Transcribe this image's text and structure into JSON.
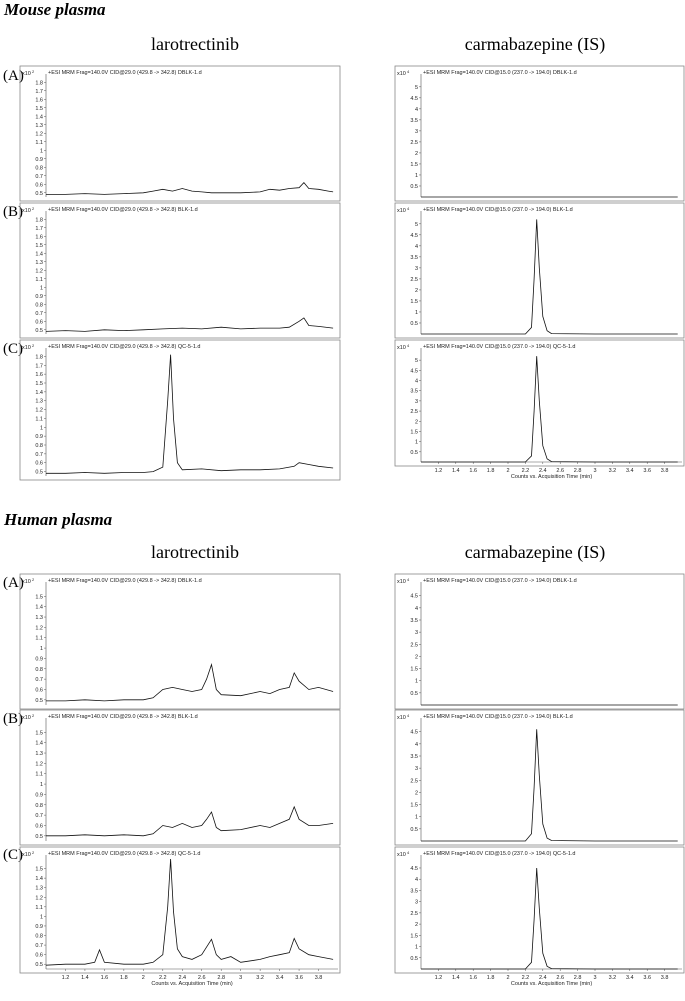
{
  "sections": [
    {
      "title": "Mouse plasma",
      "columns": [
        "larotrectinib",
        "carmabazepine (IS)"
      ],
      "rows": [
        "(A)",
        "(B)",
        "(C)"
      ]
    },
    {
      "title": "Human plasma",
      "columns": [
        "larotrectinib",
        "carmabazepine (IS)"
      ],
      "rows": [
        "(A)",
        "(B)",
        "(C)"
      ]
    }
  ],
  "chart_data": [
    {
      "type": "line",
      "panel": "mouse-larotrectinib-A",
      "header": "+ESI MRM Frag=140.0V CID@29.0 (429.8 -> 342.8) DBLK-1.d",
      "scale_label": "x10 2",
      "yticks": [
        "1.8",
        "1.7",
        "1.6",
        "1.5",
        "1.4",
        "1.3",
        "1.2",
        "1.1",
        "1",
        "0.9",
        "0.8",
        "0.7",
        "0.6",
        "0.5"
      ],
      "ylim": [
        0.45,
        1.85
      ],
      "x": [
        1.0,
        1.2,
        1.4,
        1.6,
        1.8,
        2.0,
        2.1,
        2.2,
        2.3,
        2.4,
        2.5,
        2.6,
        2.7,
        2.8,
        3.0,
        3.2,
        3.3,
        3.4,
        3.5,
        3.6,
        3.65,
        3.7,
        3.8,
        3.9,
        3.95
      ],
      "y": [
        0.48,
        0.48,
        0.49,
        0.48,
        0.49,
        0.5,
        0.52,
        0.54,
        0.52,
        0.55,
        0.52,
        0.51,
        0.5,
        0.5,
        0.5,
        0.51,
        0.54,
        0.53,
        0.55,
        0.56,
        0.62,
        0.55,
        0.54,
        0.52,
        0.51
      ]
    },
    {
      "type": "line",
      "panel": "mouse-carbamazepine-A",
      "header": "+ESI MRM Frag=140.0V CID@15.0 (237.0 -> 194.0) DBLK-1.d",
      "scale_label": "x10 4",
      "yticks": [
        "5",
        "4.5",
        "4",
        "3.5",
        "3",
        "2.5",
        "2",
        "1.5",
        "1",
        "0.5"
      ],
      "ylim": [
        0,
        5.4
      ],
      "x": [
        1.0,
        2.0,
        3.0,
        3.95
      ],
      "y": [
        0,
        0,
        0,
        0
      ]
    },
    {
      "type": "line",
      "panel": "mouse-larotrectinib-B",
      "header": "+ESI MRM Frag=140.0V CID@29.0 (429.8 -> 342.8) BLK-1.d",
      "scale_label": "x10 2",
      "yticks": [
        "1.8",
        "1.7",
        "1.6",
        "1.5",
        "1.4",
        "1.3",
        "1.2",
        "1.1",
        "1",
        "0.9",
        "0.8",
        "0.7",
        "0.6",
        "0.5"
      ],
      "ylim": [
        0.45,
        1.85
      ],
      "x": [
        1.0,
        1.2,
        1.4,
        1.6,
        1.8,
        2.0,
        2.2,
        2.4,
        2.6,
        2.8,
        3.0,
        3.2,
        3.4,
        3.5,
        3.6,
        3.65,
        3.7,
        3.8,
        3.95
      ],
      "y": [
        0.48,
        0.49,
        0.48,
        0.5,
        0.49,
        0.5,
        0.51,
        0.52,
        0.51,
        0.53,
        0.51,
        0.52,
        0.52,
        0.53,
        0.6,
        0.64,
        0.55,
        0.54,
        0.52
      ]
    },
    {
      "type": "line",
      "panel": "mouse-carbamazepine-B",
      "header": "+ESI MRM Frag=140.0V CID@15.0 (237.0 -> 194.0) BLK-1.d",
      "scale_label": "x10 4",
      "yticks": [
        "5",
        "4.5",
        "4",
        "3.5",
        "3",
        "2.5",
        "2",
        "1.5",
        "1",
        "0.5"
      ],
      "ylim": [
        0,
        5.4
      ],
      "x": [
        1.0,
        2.0,
        2.2,
        2.27,
        2.3,
        2.33,
        2.36,
        2.4,
        2.45,
        2.5,
        3.0,
        3.95
      ],
      "y": [
        0,
        0,
        0,
        0.3,
        2.5,
        5.2,
        3.0,
        0.8,
        0.15,
        0.02,
        0,
        0
      ]
    },
    {
      "type": "line",
      "panel": "mouse-larotrectinib-C",
      "header": "+ESI MRM Frag=140.0V CID@29.0 (429.8 -> 342.8) QC-5-1.d",
      "scale_label": "x10 2",
      "yticks": [
        "1.8",
        "1.7",
        "1.6",
        "1.5",
        "1.4",
        "1.3",
        "1.2",
        "1.1",
        "1",
        "0.9",
        "0.8",
        "0.7",
        "0.6",
        "0.5"
      ],
      "ylim": [
        0.45,
        1.85
      ],
      "x": [
        1.0,
        1.2,
        1.4,
        1.6,
        1.8,
        2.0,
        2.1,
        2.2,
        2.25,
        2.28,
        2.31,
        2.35,
        2.4,
        2.6,
        2.8,
        3.0,
        3.2,
        3.4,
        3.55,
        3.6,
        3.7,
        3.8,
        3.95
      ],
      "y": [
        0.48,
        0.48,
        0.49,
        0.48,
        0.49,
        0.49,
        0.5,
        0.55,
        1.3,
        1.82,
        1.1,
        0.6,
        0.52,
        0.53,
        0.51,
        0.52,
        0.52,
        0.53,
        0.56,
        0.6,
        0.58,
        0.56,
        0.54
      ]
    },
    {
      "type": "line",
      "panel": "mouse-carbamazepine-C",
      "header": "+ESI MRM Frag=140.0V CID@15.0 (237.0 -> 194.0) QC-5-1.d",
      "scale_label": "x10 4",
      "yticks": [
        "5",
        "4.5",
        "4",
        "3.5",
        "3",
        "2.5",
        "2",
        "1.5",
        "1",
        "0.5"
      ],
      "ylim": [
        0,
        5.4
      ],
      "x": [
        1.0,
        2.0,
        2.2,
        2.27,
        2.3,
        2.33,
        2.36,
        2.4,
        2.45,
        2.5,
        3.0,
        3.95
      ],
      "y": [
        0,
        0,
        0,
        0.3,
        2.5,
        5.2,
        3.0,
        0.8,
        0.15,
        0.02,
        0,
        0
      ],
      "xticks": [
        "1.2",
        "1.4",
        "1.6",
        "1.8",
        "2",
        "2.2",
        "2.4",
        "2.6",
        "2.8",
        "3",
        "3.2",
        "3.4",
        "3.6",
        "3.8"
      ],
      "xlabel": "Counts vs. Acquisition Time (min)"
    },
    {
      "type": "line",
      "panel": "human-larotrectinib-A",
      "header": "+ESI MRM Frag=140.0V CID@29.0 (429.8 -> 342.8) DBLK-1.d",
      "scale_label": "x10 2",
      "yticks": [
        "1.5",
        "1.4",
        "1.3",
        "1.2",
        "1.1",
        "1",
        "0.9",
        "0.8",
        "0.7",
        "0.6",
        "0.5"
      ],
      "ylim": [
        0.45,
        1.6
      ],
      "x": [
        1.0,
        1.2,
        1.4,
        1.6,
        1.8,
        2.0,
        2.1,
        2.2,
        2.3,
        2.4,
        2.5,
        2.6,
        2.65,
        2.7,
        2.75,
        2.8,
        3.0,
        3.2,
        3.3,
        3.4,
        3.5,
        3.55,
        3.6,
        3.7,
        3.8,
        3.95
      ],
      "y": [
        0.49,
        0.49,
        0.5,
        0.49,
        0.5,
        0.5,
        0.52,
        0.6,
        0.62,
        0.6,
        0.58,
        0.6,
        0.7,
        0.84,
        0.6,
        0.55,
        0.54,
        0.58,
        0.56,
        0.6,
        0.62,
        0.76,
        0.68,
        0.6,
        0.62,
        0.58
      ]
    },
    {
      "type": "line",
      "panel": "human-carbamazepine-A",
      "header": "+ESI MRM Frag=140.0V CID@15.0 (237.0 -> 194.0) DBLK-1.d",
      "scale_label": "x10 4",
      "yticks": [
        "4.5",
        "4",
        "3.5",
        "3",
        "2.5",
        "2",
        "1.5",
        "1",
        "0.5"
      ],
      "ylim": [
        0,
        4.9
      ],
      "x": [
        1.0,
        2.0,
        3.0,
        3.95
      ],
      "y": [
        0,
        0,
        0,
        0
      ]
    },
    {
      "type": "line",
      "panel": "human-larotrectinib-B",
      "header": "+ESI MRM Frag=140.0V CID@29.0 (429.8 -> 342.8) BLK-1.d",
      "scale_label": "x10 2",
      "yticks": [
        "1.5",
        "1.4",
        "1.3",
        "1.2",
        "1.1",
        "1",
        "0.9",
        "0.8",
        "0.7",
        "0.6",
        "0.5"
      ],
      "ylim": [
        0.45,
        1.6
      ],
      "x": [
        1.0,
        1.2,
        1.4,
        1.6,
        1.8,
        2.0,
        2.1,
        2.2,
        2.3,
        2.4,
        2.5,
        2.6,
        2.65,
        2.7,
        2.75,
        2.8,
        3.0,
        3.2,
        3.3,
        3.4,
        3.5,
        3.55,
        3.6,
        3.7,
        3.8,
        3.95
      ],
      "y": [
        0.5,
        0.5,
        0.51,
        0.5,
        0.51,
        0.5,
        0.52,
        0.6,
        0.58,
        0.62,
        0.58,
        0.6,
        0.66,
        0.73,
        0.58,
        0.55,
        0.56,
        0.6,
        0.58,
        0.62,
        0.66,
        0.78,
        0.66,
        0.6,
        0.6,
        0.62
      ]
    },
    {
      "type": "line",
      "panel": "human-carbamazepine-B",
      "header": "+ESI MRM Frag=140.0V CID@15.0 (237.0 -> 194.0) BLK-1.d",
      "scale_label": "x10 4",
      "yticks": [
        "4.5",
        "4",
        "3.5",
        "3",
        "2.5",
        "2",
        "1.5",
        "1",
        "0.5"
      ],
      "ylim": [
        0,
        4.9
      ],
      "x": [
        1.0,
        2.0,
        2.2,
        2.27,
        2.3,
        2.33,
        2.36,
        2.4,
        2.45,
        2.5,
        3.0,
        3.95
      ],
      "y": [
        0,
        0,
        0,
        0.3,
        2.2,
        4.6,
        2.7,
        0.7,
        0.12,
        0.02,
        0,
        0
      ]
    },
    {
      "type": "line",
      "panel": "human-larotrectinib-C",
      "header": "+ESI MRM Frag=140.0V CID@29.0 (429.8 -> 342.8) QC-5-1.d",
      "scale_label": "x10 2",
      "yticks": [
        "1.5",
        "1.4",
        "1.3",
        "1.2",
        "1.1",
        "1",
        "0.9",
        "0.8",
        "0.7",
        "0.6",
        "0.5"
      ],
      "ylim": [
        0.45,
        1.6
      ],
      "x": [
        1.0,
        1.2,
        1.4,
        1.5,
        1.55,
        1.6,
        1.8,
        2.0,
        2.1,
        2.2,
        2.25,
        2.28,
        2.31,
        2.35,
        2.4,
        2.5,
        2.6,
        2.7,
        2.75,
        2.8,
        2.9,
        3.0,
        3.2,
        3.3,
        3.4,
        3.5,
        3.55,
        3.6,
        3.7,
        3.8,
        3.95
      ],
      "y": [
        0.49,
        0.5,
        0.5,
        0.52,
        0.65,
        0.52,
        0.5,
        0.5,
        0.52,
        0.6,
        1.1,
        1.6,
        1.05,
        0.66,
        0.58,
        0.55,
        0.6,
        0.76,
        0.6,
        0.55,
        0.58,
        0.52,
        0.55,
        0.58,
        0.6,
        0.62,
        0.77,
        0.66,
        0.6,
        0.58,
        0.55
      ],
      "xticks": [
        "1.2",
        "1.4",
        "1.6",
        "1.8",
        "2",
        "2.2",
        "2.4",
        "2.6",
        "2.8",
        "3",
        "3.2",
        "3.4",
        "3.6",
        "3.8"
      ],
      "xlabel": "Counts vs. Acquisition Time (min)"
    },
    {
      "type": "line",
      "panel": "human-carbamazepine-C",
      "header": "+ESI MRM Frag=140.0V CID@15.0 (237.0 -> 194.0) QC-5-1.d",
      "scale_label": "x10 4",
      "yticks": [
        "4.5",
        "4",
        "3.5",
        "3",
        "2.5",
        "2",
        "1.5",
        "1",
        "0.5"
      ],
      "ylim": [
        0,
        4.9
      ],
      "x": [
        1.0,
        2.0,
        2.2,
        2.27,
        2.3,
        2.33,
        2.36,
        2.4,
        2.45,
        2.5,
        3.0,
        3.95
      ],
      "y": [
        0,
        0,
        0,
        0.3,
        2.2,
        4.5,
        2.7,
        0.7,
        0.12,
        0.02,
        0,
        0
      ],
      "xticks": [
        "1.2",
        "1.4",
        "1.6",
        "1.8",
        "2",
        "2.2",
        "2.4",
        "2.6",
        "2.8",
        "3",
        "3.2",
        "3.4",
        "3.6",
        "3.8"
      ],
      "xlabel": "Counts vs. Acquisition Time (min)"
    }
  ]
}
